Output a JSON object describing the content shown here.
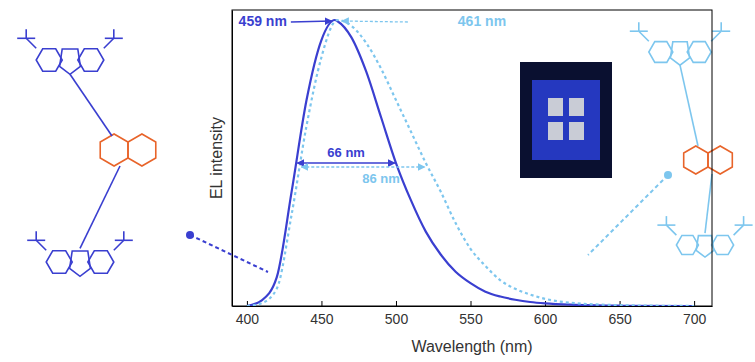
{
  "chart_data": {
    "type": "line",
    "x_label": "Wavelength (nm)",
    "y_label": "EL intensity",
    "x": [
      400,
      410,
      420,
      430,
      440,
      450,
      459,
      461,
      470,
      480,
      490,
      500,
      510,
      520,
      530,
      540,
      550,
      560,
      570,
      580,
      590,
      600,
      620,
      650,
      700
    ],
    "series": [
      {
        "color": "#3a3fd0",
        "line_style": "solid",
        "values": [
          0,
          0.02,
          0.1,
          0.4,
          0.72,
          0.93,
          1.0,
          0.995,
          0.94,
          0.82,
          0.66,
          0.5,
          0.37,
          0.26,
          0.18,
          0.12,
          0.08,
          0.05,
          0.033,
          0.022,
          0.014,
          0.009,
          0.004,
          0.001,
          0
        ]
      },
      {
        "color": "#7dc6ee",
        "line_style": "dotted",
        "values": [
          0,
          0.01,
          0.06,
          0.32,
          0.63,
          0.87,
          0.995,
          1.0,
          0.98,
          0.92,
          0.83,
          0.72,
          0.61,
          0.5,
          0.4,
          0.29,
          0.2,
          0.14,
          0.09,
          0.06,
          0.04,
          0.025,
          0.01,
          0.003,
          0
        ]
      }
    ],
    "xlim": [
      390,
      712
    ],
    "xticks": [
      400,
      450,
      500,
      550,
      600,
      650,
      700
    ],
    "ylim": [
      0,
      1.035
    ],
    "tick_labels": "x",
    "annotations": [
      {
        "text": "459 nm",
        "kind": "peak",
        "series": 0
      },
      {
        "text": "461 nm",
        "kind": "peak",
        "series": 1
      },
      {
        "text": "66 nm",
        "kind": "fwhm",
        "series": 0
      },
      {
        "text": "86 nm",
        "kind": "fwhm",
        "series": 1
      }
    ]
  }
}
